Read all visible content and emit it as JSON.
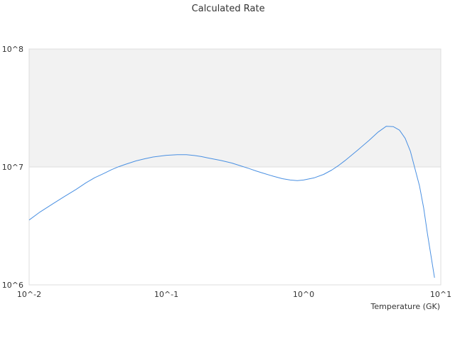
{
  "chart_data": {
    "type": "line",
    "title": "Calculated Rate",
    "xlabel": "Temperature (GK)",
    "ylabel": "",
    "xscale": "log",
    "yscale": "log",
    "xlim": [
      0.01,
      10
    ],
    "ylim": [
      1000000,
      100000000
    ],
    "x_tick_labels": [
      "10^-2",
      "10^-1",
      "10^0",
      "10^1"
    ],
    "y_tick_labels": [
      "10^6",
      "10^7",
      "10^8"
    ],
    "grid": false,
    "legend": "none",
    "shaded_band": {
      "y_from": 10000000,
      "y_to": 100000000,
      "color": "#f2f2f2"
    },
    "series": [
      {
        "color": "#4a90e2",
        "x": [
          0.01,
          0.012,
          0.015,
          0.018,
          0.022,
          0.026,
          0.03,
          0.035,
          0.04,
          0.045,
          0.05,
          0.06,
          0.07,
          0.08,
          0.09,
          0.1,
          0.12,
          0.14,
          0.16,
          0.18,
          0.2,
          0.25,
          0.3,
          0.35,
          0.4,
          0.45,
          0.5,
          0.6,
          0.7,
          0.8,
          0.9,
          1.0,
          1.2,
          1.4,
          1.6,
          1.8,
          2.0,
          2.5,
          3.0,
          3.5,
          4.0,
          4.5,
          5.0,
          5.5,
          6.0,
          7.0,
          7.5,
          8.0,
          9.0
        ],
        "y": [
          3550000,
          4150000,
          4900000,
          5600000,
          6450000,
          7350000,
          8100000,
          8800000,
          9500000,
          10050000,
          10500000,
          11250000,
          11750000,
          12150000,
          12350000,
          12550000,
          12700000,
          12700000,
          12500000,
          12250000,
          11950000,
          11350000,
          10800000,
          10200000,
          9700000,
          9250000,
          8900000,
          8350000,
          7950000,
          7750000,
          7650000,
          7750000,
          8100000,
          8650000,
          9400000,
          10300000,
          11300000,
          14000000,
          16800000,
          19800000,
          22100000,
          22000000,
          20500000,
          17500000,
          13600000,
          6900000,
          4500000,
          2700000,
          1150000
        ]
      }
    ]
  }
}
